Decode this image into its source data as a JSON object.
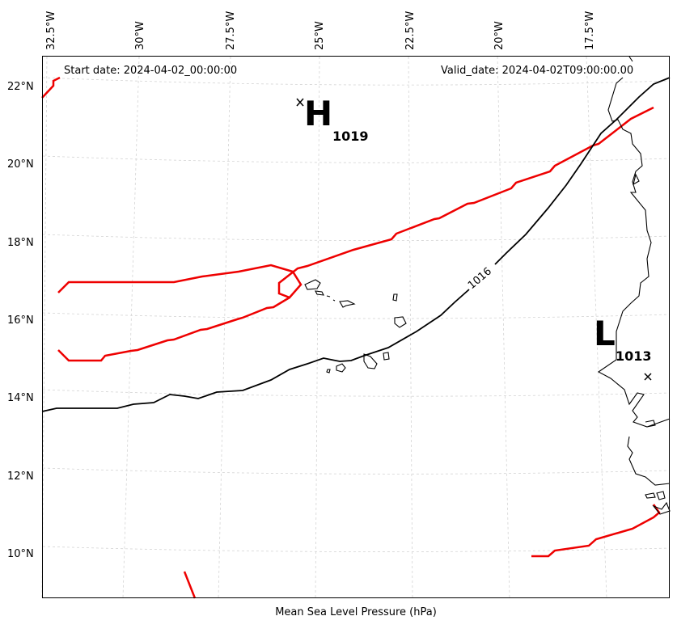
{
  "header": {
    "start_date": "Start date: 2024-04-02_00:00:00",
    "valid_date": "Valid_date: 2024-04-02T09:00:00.00"
  },
  "axis": {
    "xlabel": "Mean Sea Level Pressure (hPa)",
    "lon_ticks": [
      "32.5°W",
      "30°W",
      "27.5°W",
      "25°W",
      "22.5°W",
      "20°W",
      "17.5°W"
    ],
    "lat_ticks": [
      "22°N",
      "20°N",
      "18°N",
      "16°N",
      "14°N",
      "12°N",
      "10°N"
    ]
  },
  "pressure_centers": [
    {
      "type_label": "H",
      "value": "1019"
    },
    {
      "type_label": "L",
      "value": "1013"
    }
  ],
  "contours": {
    "isobar_label": "1016",
    "isobar_color": "#000000",
    "red_color": "#ee0000"
  },
  "map": {
    "gridlines": true,
    "gridline_color": "#cccccc",
    "coastline_color": "#000000"
  }
}
